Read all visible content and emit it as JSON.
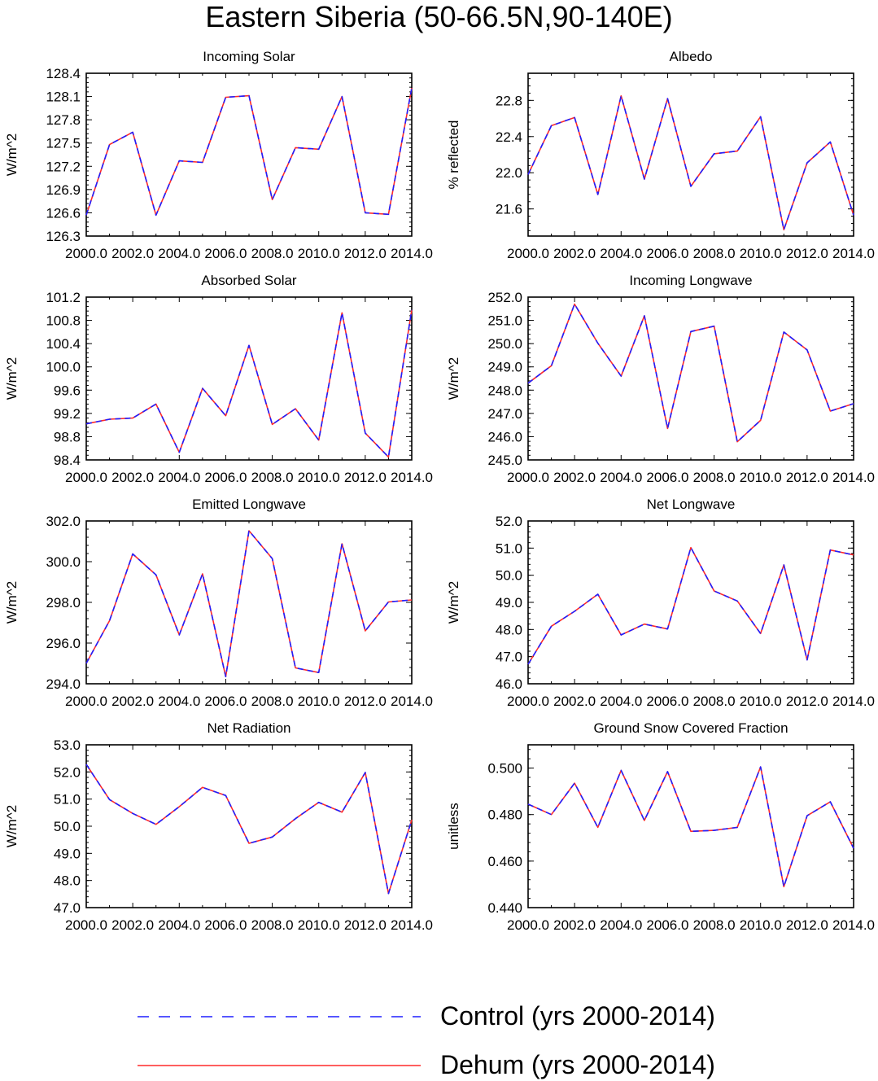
{
  "title": "Eastern Siberia (50-66.5N,90-140E)",
  "legend": {
    "control_label": "Control (yrs 2000-2014)",
    "control_color": "#1f1fff",
    "dehum_label": "Dehum (yrs 2000-2014)",
    "dehum_color": "#ff2a2a"
  },
  "chart_data": [
    {
      "type": "line",
      "title": "Incoming Solar",
      "ylabel": "W/m^2",
      "xlabel": "",
      "xlim": [
        2000,
        2014
      ],
      "ylim": [
        126.3,
        128.4
      ],
      "xticks": [
        "2000.0",
        "2002.0",
        "2004.0",
        "2006.0",
        "2008.0",
        "2010.0",
        "2012.0",
        "2014.0"
      ],
      "yticks": [
        "126.3",
        "126.6",
        "126.9",
        "127.2",
        "127.5",
        "127.8",
        "128.1",
        "128.4"
      ],
      "x": [
        2000,
        2001,
        2002,
        2003,
        2004,
        2005,
        2006,
        2007,
        2008,
        2009,
        2010,
        2011,
        2012,
        2013,
        2014
      ],
      "series": [
        {
          "name": "Control",
          "values": [
            126.57,
            127.48,
            127.64,
            126.57,
            127.27,
            127.25,
            128.09,
            128.11,
            126.77,
            127.44,
            127.42,
            128.1,
            126.6,
            126.58,
            128.21
          ]
        },
        {
          "name": "Dehum",
          "values": [
            126.57,
            127.48,
            127.64,
            126.57,
            127.27,
            127.25,
            128.09,
            128.11,
            126.77,
            127.44,
            127.42,
            128.1,
            126.6,
            126.58,
            128.21
          ]
        }
      ]
    },
    {
      "type": "line",
      "title": "Albedo",
      "ylabel": "% reflected",
      "xlabel": "",
      "xlim": [
        2000,
        2014
      ],
      "ylim": [
        21.3,
        23.1
      ],
      "xticks": [
        "2000.0",
        "2002.0",
        "2004.0",
        "2006.0",
        "2008.0",
        "2010.0",
        "2012.0",
        "2014.0"
      ],
      "yticks": [
        "21.6",
        "22.0",
        "22.4",
        "22.8"
      ],
      "x": [
        2000,
        2001,
        2002,
        2003,
        2004,
        2005,
        2006,
        2007,
        2008,
        2009,
        2010,
        2011,
        2012,
        2013,
        2014
      ],
      "series": [
        {
          "name": "Control",
          "values": [
            21.98,
            22.52,
            22.61,
            21.76,
            22.85,
            21.93,
            22.82,
            21.85,
            22.21,
            22.24,
            22.62,
            21.37,
            22.11,
            22.34,
            21.53
          ]
        },
        {
          "name": "Dehum",
          "values": [
            21.98,
            22.52,
            22.61,
            21.76,
            22.85,
            21.93,
            22.82,
            21.85,
            22.21,
            22.24,
            22.62,
            21.37,
            22.11,
            22.34,
            21.53
          ]
        }
      ]
    },
    {
      "type": "line",
      "title": "Absorbed Solar",
      "ylabel": "W/m^2",
      "xlabel": "",
      "xlim": [
        2000,
        2014
      ],
      "ylim": [
        98.4,
        101.2
      ],
      "xticks": [
        "2000.0",
        "2002.0",
        "2004.0",
        "2006.0",
        "2008.0",
        "2010.0",
        "2012.0",
        "2014.0"
      ],
      "yticks": [
        "98.4",
        "98.8",
        "99.2",
        "99.6",
        "100.0",
        "100.4",
        "100.8",
        "101.2"
      ],
      "x": [
        2000,
        2001,
        2002,
        2003,
        2004,
        2005,
        2006,
        2007,
        2008,
        2009,
        2010,
        2011,
        2012,
        2013,
        2014
      ],
      "series": [
        {
          "name": "Control",
          "values": [
            99.02,
            99.1,
            99.12,
            99.36,
            98.53,
            99.63,
            99.16,
            100.37,
            99.01,
            99.28,
            98.74,
            100.93,
            98.86,
            98.45,
            100.98
          ]
        },
        {
          "name": "Dehum",
          "values": [
            99.02,
            99.1,
            99.12,
            99.36,
            98.53,
            99.63,
            99.16,
            100.37,
            99.01,
            99.28,
            98.74,
            100.93,
            98.86,
            98.45,
            100.98
          ]
        }
      ]
    },
    {
      "type": "line",
      "title": "Incoming Longwave",
      "ylabel": "W/m^2",
      "xlabel": "",
      "xlim": [
        2000,
        2014
      ],
      "ylim": [
        245.0,
        252.0
      ],
      "xticks": [
        "2000.0",
        "2002.0",
        "2004.0",
        "2006.0",
        "2008.0",
        "2010.0",
        "2012.0",
        "2014.0"
      ],
      "yticks": [
        "245.0",
        "246.0",
        "247.0",
        "248.0",
        "249.0",
        "250.0",
        "251.0",
        "252.0"
      ],
      "x": [
        2000,
        2001,
        2002,
        2003,
        2004,
        2005,
        2006,
        2007,
        2008,
        2009,
        2010,
        2011,
        2012,
        2013,
        2014
      ],
      "series": [
        {
          "name": "Control",
          "values": [
            248.3,
            249.05,
            251.7,
            250.02,
            248.6,
            251.2,
            246.35,
            250.52,
            250.75,
            245.78,
            246.7,
            250.5,
            249.73,
            247.1,
            247.42
          ]
        },
        {
          "name": "Dehum",
          "values": [
            248.3,
            249.05,
            251.7,
            250.02,
            248.6,
            251.2,
            246.35,
            250.52,
            250.75,
            245.78,
            246.7,
            250.5,
            249.73,
            247.1,
            247.42
          ]
        }
      ]
    },
    {
      "type": "line",
      "title": "Emitted Longwave",
      "ylabel": "W/m^2",
      "xlabel": "",
      "xlim": [
        2000,
        2014
      ],
      "ylim": [
        294.0,
        302.0
      ],
      "xticks": [
        "2000.0",
        "2002.0",
        "2004.0",
        "2006.0",
        "2008.0",
        "2010.0",
        "2012.0",
        "2014.0"
      ],
      "yticks": [
        "294.0",
        "296.0",
        "298.0",
        "300.0",
        "302.0"
      ],
      "x": [
        2000,
        2001,
        2002,
        2003,
        2004,
        2005,
        2006,
        2007,
        2008,
        2009,
        2010,
        2011,
        2012,
        2013,
        2014
      ],
      "series": [
        {
          "name": "Control",
          "values": [
            295.0,
            297.1,
            300.38,
            299.35,
            296.4,
            299.4,
            294.35,
            301.52,
            300.15,
            294.78,
            294.55,
            300.88,
            296.6,
            298.02,
            298.12
          ]
        },
        {
          "name": "Dehum",
          "values": [
            295.0,
            297.1,
            300.38,
            299.35,
            296.4,
            299.4,
            294.35,
            301.52,
            300.15,
            294.78,
            294.55,
            300.88,
            296.6,
            298.02,
            298.12
          ]
        }
      ]
    },
    {
      "type": "line",
      "title": "Net Longwave",
      "ylabel": "W/m^2",
      "xlabel": "",
      "xlim": [
        2000,
        2014
      ],
      "ylim": [
        46.0,
        52.0
      ],
      "xticks": [
        "2000.0",
        "2002.0",
        "2004.0",
        "2006.0",
        "2008.0",
        "2010.0",
        "2012.0",
        "2014.0"
      ],
      "yticks": [
        "46.0",
        "47.0",
        "48.0",
        "49.0",
        "50.0",
        "51.0",
        "52.0"
      ],
      "x": [
        2000,
        2001,
        2002,
        2003,
        2004,
        2005,
        2006,
        2007,
        2008,
        2009,
        2010,
        2011,
        2012,
        2013,
        2014
      ],
      "series": [
        {
          "name": "Control",
          "values": [
            46.72,
            48.12,
            48.67,
            49.3,
            47.8,
            48.2,
            48.02,
            51.02,
            49.42,
            49.05,
            47.85,
            50.38,
            46.88,
            50.93,
            50.75
          ]
        },
        {
          "name": "Dehum",
          "values": [
            46.72,
            48.12,
            48.67,
            49.3,
            47.8,
            48.2,
            48.02,
            51.02,
            49.42,
            49.05,
            47.85,
            50.38,
            46.88,
            50.93,
            50.75
          ]
        }
      ]
    },
    {
      "type": "line",
      "title": "Net Radiation",
      "ylabel": "W/m^2",
      "xlabel": "",
      "xlim": [
        2000,
        2014
      ],
      "ylim": [
        47.0,
        53.0
      ],
      "xticks": [
        "2000.0",
        "2002.0",
        "2004.0",
        "2006.0",
        "2008.0",
        "2010.0",
        "2012.0",
        "2014.0"
      ],
      "yticks": [
        "47.0",
        "48.0",
        "49.0",
        "50.0",
        "51.0",
        "52.0",
        "53.0"
      ],
      "x": [
        2000,
        2001,
        2002,
        2003,
        2004,
        2005,
        2006,
        2007,
        2008,
        2009,
        2010,
        2011,
        2012,
        2013,
        2014
      ],
      "series": [
        {
          "name": "Control",
          "values": [
            52.28,
            50.98,
            50.47,
            50.07,
            50.72,
            51.43,
            51.13,
            49.37,
            49.6,
            50.28,
            50.88,
            50.52,
            51.98,
            47.52,
            50.23
          ]
        },
        {
          "name": "Dehum",
          "values": [
            52.28,
            50.98,
            50.47,
            50.07,
            50.72,
            51.43,
            51.13,
            49.37,
            49.6,
            50.28,
            50.88,
            50.52,
            51.98,
            47.52,
            50.23
          ]
        }
      ]
    },
    {
      "type": "line",
      "title": "Ground Snow Covered Fraction",
      "ylabel": "unitless",
      "xlabel": "",
      "xlim": [
        2000,
        2014
      ],
      "ylim": [
        0.44,
        0.51
      ],
      "xticks": [
        "2000.0",
        "2002.0",
        "2004.0",
        "2006.0",
        "2008.0",
        "2010.0",
        "2012.0",
        "2014.0"
      ],
      "yticks": [
        "0.440",
        "0.460",
        "0.480",
        "0.500"
      ],
      "x": [
        2000,
        2001,
        2002,
        2003,
        2004,
        2005,
        2006,
        2007,
        2008,
        2009,
        2010,
        2011,
        2012,
        2013,
        2014
      ],
      "series": [
        {
          "name": "Control",
          "values": [
            0.4845,
            0.48,
            0.4935,
            0.4745,
            0.499,
            0.4775,
            0.4985,
            0.4728,
            0.4732,
            0.4745,
            0.5005,
            0.449,
            0.4795,
            0.4855,
            0.4655
          ]
        },
        {
          "name": "Dehum",
          "values": [
            0.4845,
            0.48,
            0.4935,
            0.4745,
            0.499,
            0.4775,
            0.4985,
            0.4728,
            0.4732,
            0.4745,
            0.5005,
            0.449,
            0.4795,
            0.4855,
            0.4655
          ]
        }
      ]
    }
  ]
}
